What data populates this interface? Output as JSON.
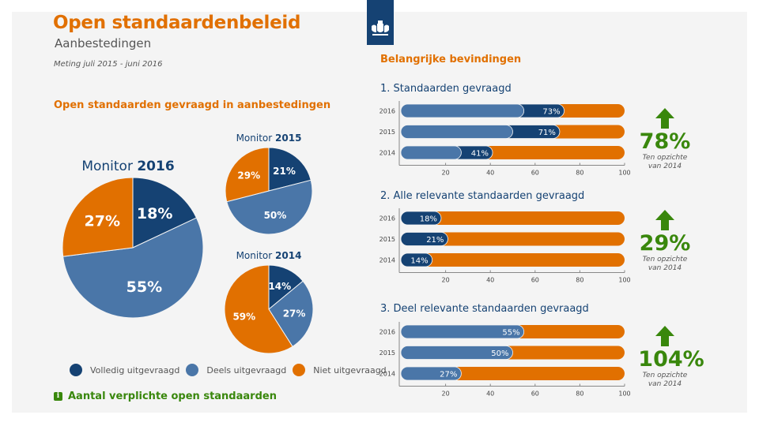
{
  "header": {
    "title": "Open standaardenbeleid",
    "subtitle": "Aanbestedingen",
    "period": "Meting juli 2015 - juni 2016",
    "logo_icon": "coat-of-arms-icon"
  },
  "left_section": {
    "heading": "Open standaarden gevraagd in aanbestedingen",
    "info_label": "Aantal verplichte open standaarden",
    "info_icon": "i"
  },
  "right_section": {
    "heading": "Belangrijke bevindingen"
  },
  "colors": {
    "volledig": "#154273",
    "deels": "#4a76a8",
    "niet": "#e17000",
    "accent_orange": "#e17000",
    "accent_green": "#39870c",
    "dark_blue": "#154273"
  },
  "chart_data": [
    {
      "type": "pie",
      "id": "pie2016",
      "title_prefix": "Monitor",
      "title_year": "2016",
      "slices": [
        {
          "label": "Volledig uitgevraagd",
          "value": 18,
          "display": "18%"
        },
        {
          "label": "Deels uitgevraagd",
          "value": 55,
          "display": "55%"
        },
        {
          "label": "Niet uitgevraagd",
          "value": 27,
          "display": "27%"
        }
      ]
    },
    {
      "type": "pie",
      "id": "pie2015",
      "title_prefix": "Monitor",
      "title_year": "2015",
      "slices": [
        {
          "label": "Volledig uitgevraagd",
          "value": 21,
          "display": "21%"
        },
        {
          "label": "Deels uitgevraagd",
          "value": 50,
          "display": "50%"
        },
        {
          "label": "Niet uitgevraagd",
          "value": 29,
          "display": "29%"
        }
      ]
    },
    {
      "type": "pie",
      "id": "pie2014",
      "title_prefix": "Monitor",
      "title_year": "2014",
      "slices": [
        {
          "label": "Volledig uitgevraagd",
          "value": 14,
          "display": "14%"
        },
        {
          "label": "Deels uitgevraagd",
          "value": 27,
          "display": "27%"
        },
        {
          "label": "Niet uitgevraagd",
          "value": 59,
          "display": "59%"
        }
      ]
    },
    {
      "type": "bar",
      "id": "bar1",
      "title": "1. Standaarden gevraagd",
      "orientation": "horizontal",
      "stacked": true,
      "categories": [
        "2016",
        "2015",
        "2014"
      ],
      "series": [
        {
          "name": "Deels uitgevraagd",
          "values": [
            55,
            50,
            27
          ]
        },
        {
          "name": "Volledig uitgevraagd",
          "values": [
            18,
            21,
            14
          ]
        },
        {
          "name": "Niet uitgevraagd",
          "values": [
            27,
            29,
            59
          ]
        }
      ],
      "value_labels": [
        "73%",
        "71%",
        "41%"
      ],
      "xlim": [
        0,
        100
      ],
      "xticks": [
        "20",
        "40",
        "60",
        "80",
        "100"
      ],
      "change": {
        "value": "78%",
        "direction": "up",
        "note_line1": "Ten opzichte",
        "note_line2": "van 2014"
      }
    },
    {
      "type": "bar",
      "id": "bar2",
      "title": "2. Alle relevante standaarden gevraagd",
      "orientation": "horizontal",
      "stacked": true,
      "categories": [
        "2016",
        "2015",
        "2014"
      ],
      "series": [
        {
          "name": "Volledig uitgevraagd",
          "values": [
            18,
            21,
            14
          ]
        },
        {
          "name": "Rest",
          "values": [
            82,
            79,
            86
          ]
        }
      ],
      "value_labels": [
        "18%",
        "21%",
        "14%"
      ],
      "xlim": [
        0,
        100
      ],
      "xticks": [
        "20",
        "40",
        "60",
        "80",
        "100"
      ],
      "change": {
        "value": "29%",
        "direction": "up",
        "note_line1": "Ten opzichte",
        "note_line2": "van 2014"
      }
    },
    {
      "type": "bar",
      "id": "bar3",
      "title": "3. Deel relevante standaarden gevraagd",
      "orientation": "horizontal",
      "stacked": true,
      "categories": [
        "2016",
        "2015",
        "2014"
      ],
      "series": [
        {
          "name": "Deels uitgevraagd",
          "values": [
            55,
            50,
            27
          ]
        },
        {
          "name": "Rest",
          "values": [
            45,
            50,
            73
          ]
        }
      ],
      "value_labels": [
        "55%",
        "50%",
        "27%"
      ],
      "xlim": [
        0,
        100
      ],
      "xticks": [
        "20",
        "40",
        "60",
        "80",
        "100"
      ],
      "change": {
        "value": "104%",
        "direction": "up",
        "note_line1": "Ten opzichte",
        "note_line2": "van 2014"
      }
    }
  ],
  "legend": [
    {
      "label": "Volledig uitgevraagd",
      "color": "#154273"
    },
    {
      "label": "Deels uitgevraagd",
      "color": "#4a76a8"
    },
    {
      "label": "Niet uitgevraagd",
      "color": "#e17000"
    }
  ]
}
